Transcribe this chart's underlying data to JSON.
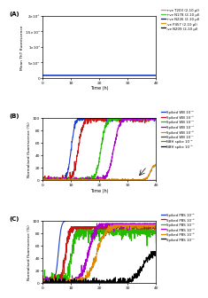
{
  "panel_A": {
    "ylabel": "Mean ThT fluorescence",
    "xlabel": "Time (h)",
    "ylim": [
      0,
      200000
    ],
    "xlim": [
      0,
      40
    ],
    "yticks": [
      0,
      50000,
      100000,
      150000,
      200000
    ],
    "ytick_labels": [
      "0",
      "5×10⁴",
      "1×10⁵",
      "1.5×10⁵",
      "2×10⁵"
    ],
    "flat_value": 8000,
    "line_color": "#1a3ccc",
    "legend": [
      {
        "label": "+ve T203 (2-10 μl)",
        "color": "#e88080"
      },
      {
        "label": "+ve N178 (2-10 μl)",
        "color": "#44cc44"
      },
      {
        "label": "+ve N226 (2-10 μl)",
        "color": "#0000dd"
      },
      {
        "label": "-ve P457 (2-10 μl)",
        "color": "#cc9900"
      },
      {
        "label": "-ve N209 (2-10 μl)",
        "color": "#000000"
      }
    ]
  },
  "panel_B": {
    "ylabel": "Normalised fluorescence (%)",
    "xlabel": "Time (h)",
    "ylim": [
      0,
      100
    ],
    "xlim": [
      0,
      40
    ],
    "yticks": [
      0,
      20,
      40,
      60,
      80,
      100
    ],
    "xticks": [
      0,
      10,
      20,
      30,
      40
    ],
    "legend": [
      {
        "label": "Spiked WB 10⁻²",
        "color": "#1a3ccc"
      },
      {
        "label": "Spiked WB 10⁻³",
        "color": "#cc1111"
      },
      {
        "label": "Spiked WB 10⁻⁴",
        "color": "#22bb00"
      },
      {
        "label": "Spiked WB 10⁻⁵",
        "color": "#aa00cc"
      },
      {
        "label": "Spiked WB 10⁻⁶",
        "color": "#dd8800"
      },
      {
        "label": "Spiked WB 10⁻⁷",
        "color": "#444444"
      },
      {
        "label": "NBH spike 10⁻²",
        "color": "#887700"
      },
      {
        "label": "NBH spike 10⁻³",
        "color": "#000066"
      }
    ]
  },
  "panel_C": {
    "ylabel": "Normalised fluorescence (%)",
    "xlabel": "",
    "ylim": [
      0,
      100
    ],
    "xlim": [
      0,
      40
    ],
    "yticks": [
      0,
      20,
      40,
      60,
      80,
      100
    ],
    "xticks": [
      0,
      10,
      20,
      30,
      40
    ],
    "legend": [
      {
        "label": "Spiked PBS 10⁻²",
        "color": "#1a3ccc"
      },
      {
        "label": "Spiked PBS 10⁻³",
        "color": "#cc1111"
      },
      {
        "label": "Spiked PBS 10⁻⁴",
        "color": "#22bb00"
      },
      {
        "label": "Spiked PBS 10⁻⁵",
        "color": "#aa00cc"
      },
      {
        "label": "Spiked PBS 10⁻⁶",
        "color": "#dd8800"
      },
      {
        "label": "Spiked PBS 10⁻⁷",
        "color": "#000000"
      }
    ]
  },
  "label_A": "(A)",
  "label_B": "(B)",
  "label_C": "(C)"
}
